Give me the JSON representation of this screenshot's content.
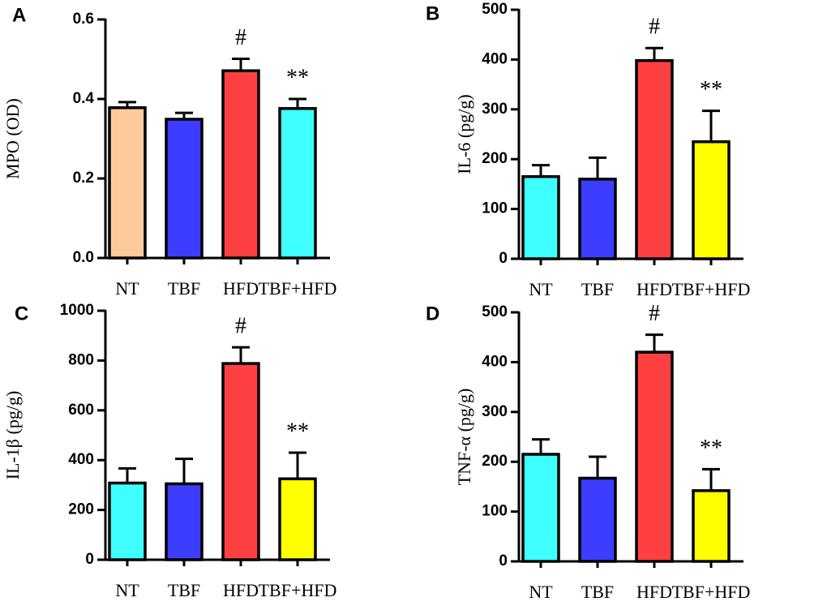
{
  "chart_data": [
    {
      "type": "bar",
      "label": "A",
      "ylabel": "MPO (OD)",
      "categories": [
        "NT",
        "TBF",
        "HFD",
        "TBF+HFD"
      ],
      "values": [
        0.378,
        0.349,
        0.471,
        0.376
      ],
      "errors": [
        0.014,
        0.016,
        0.03,
        0.024
      ],
      "colors": [
        "#fdcb9b",
        "#3d3dff",
        "#ff4040",
        "#40ffff"
      ],
      "annotations": [
        null,
        null,
        "#",
        "**"
      ],
      "ylim": [
        0,
        0.6
      ],
      "yticks": [
        {
          "value": 0,
          "label": "0.0"
        },
        0.2,
        0.4,
        0.6
      ]
    },
    {
      "type": "bar",
      "label": "B",
      "ylabel": "IL-6 (pg/g)",
      "categories": [
        "NT",
        "TBF",
        "HFD",
        "TBF+HFD"
      ],
      "values": [
        165,
        160,
        398,
        235
      ],
      "errors": [
        23,
        43,
        25,
        62
      ],
      "colors": [
        "#40ffff",
        "#3d3dff",
        "#ff4040",
        "#ffff00"
      ],
      "annotations": [
        null,
        null,
        "#",
        "**"
      ],
      "ylim": [
        0,
        500
      ],
      "yticks": [
        0,
        100,
        200,
        300,
        400,
        500
      ]
    },
    {
      "type": "bar",
      "label": "C",
      "ylabel": "IL-1β (pg/g)",
      "categories": [
        "NT",
        "TBF",
        "HFD",
        "TBF+HFD"
      ],
      "values": [
        308,
        305,
        788,
        325
      ],
      "errors": [
        59,
        100,
        65,
        105
      ],
      "colors": [
        "#40ffff",
        "#3d3dff",
        "#ff4040",
        "#ffff00"
      ],
      "annotations": [
        null,
        null,
        "#",
        "**"
      ],
      "ylim": [
        0,
        1000
      ],
      "yticks": [
        0,
        200,
        400,
        600,
        800,
        1000
      ]
    },
    {
      "type": "bar",
      "label": "D",
      "ylabel": "TNF-α (pg/g)",
      "categories": [
        "NT",
        "TBF",
        "HFD",
        "TBF+HFD"
      ],
      "values": [
        215,
        167,
        420,
        142
      ],
      "errors": [
        30,
        43,
        35,
        43
      ],
      "colors": [
        "#40ffff",
        "#3d3dff",
        "#ff4040",
        "#ffff00"
      ],
      "annotations": [
        null,
        null,
        "#",
        "**"
      ],
      "ylim": [
        0,
        500
      ],
      "yticks": [
        0,
        100,
        200,
        300,
        400,
        500
      ]
    }
  ]
}
